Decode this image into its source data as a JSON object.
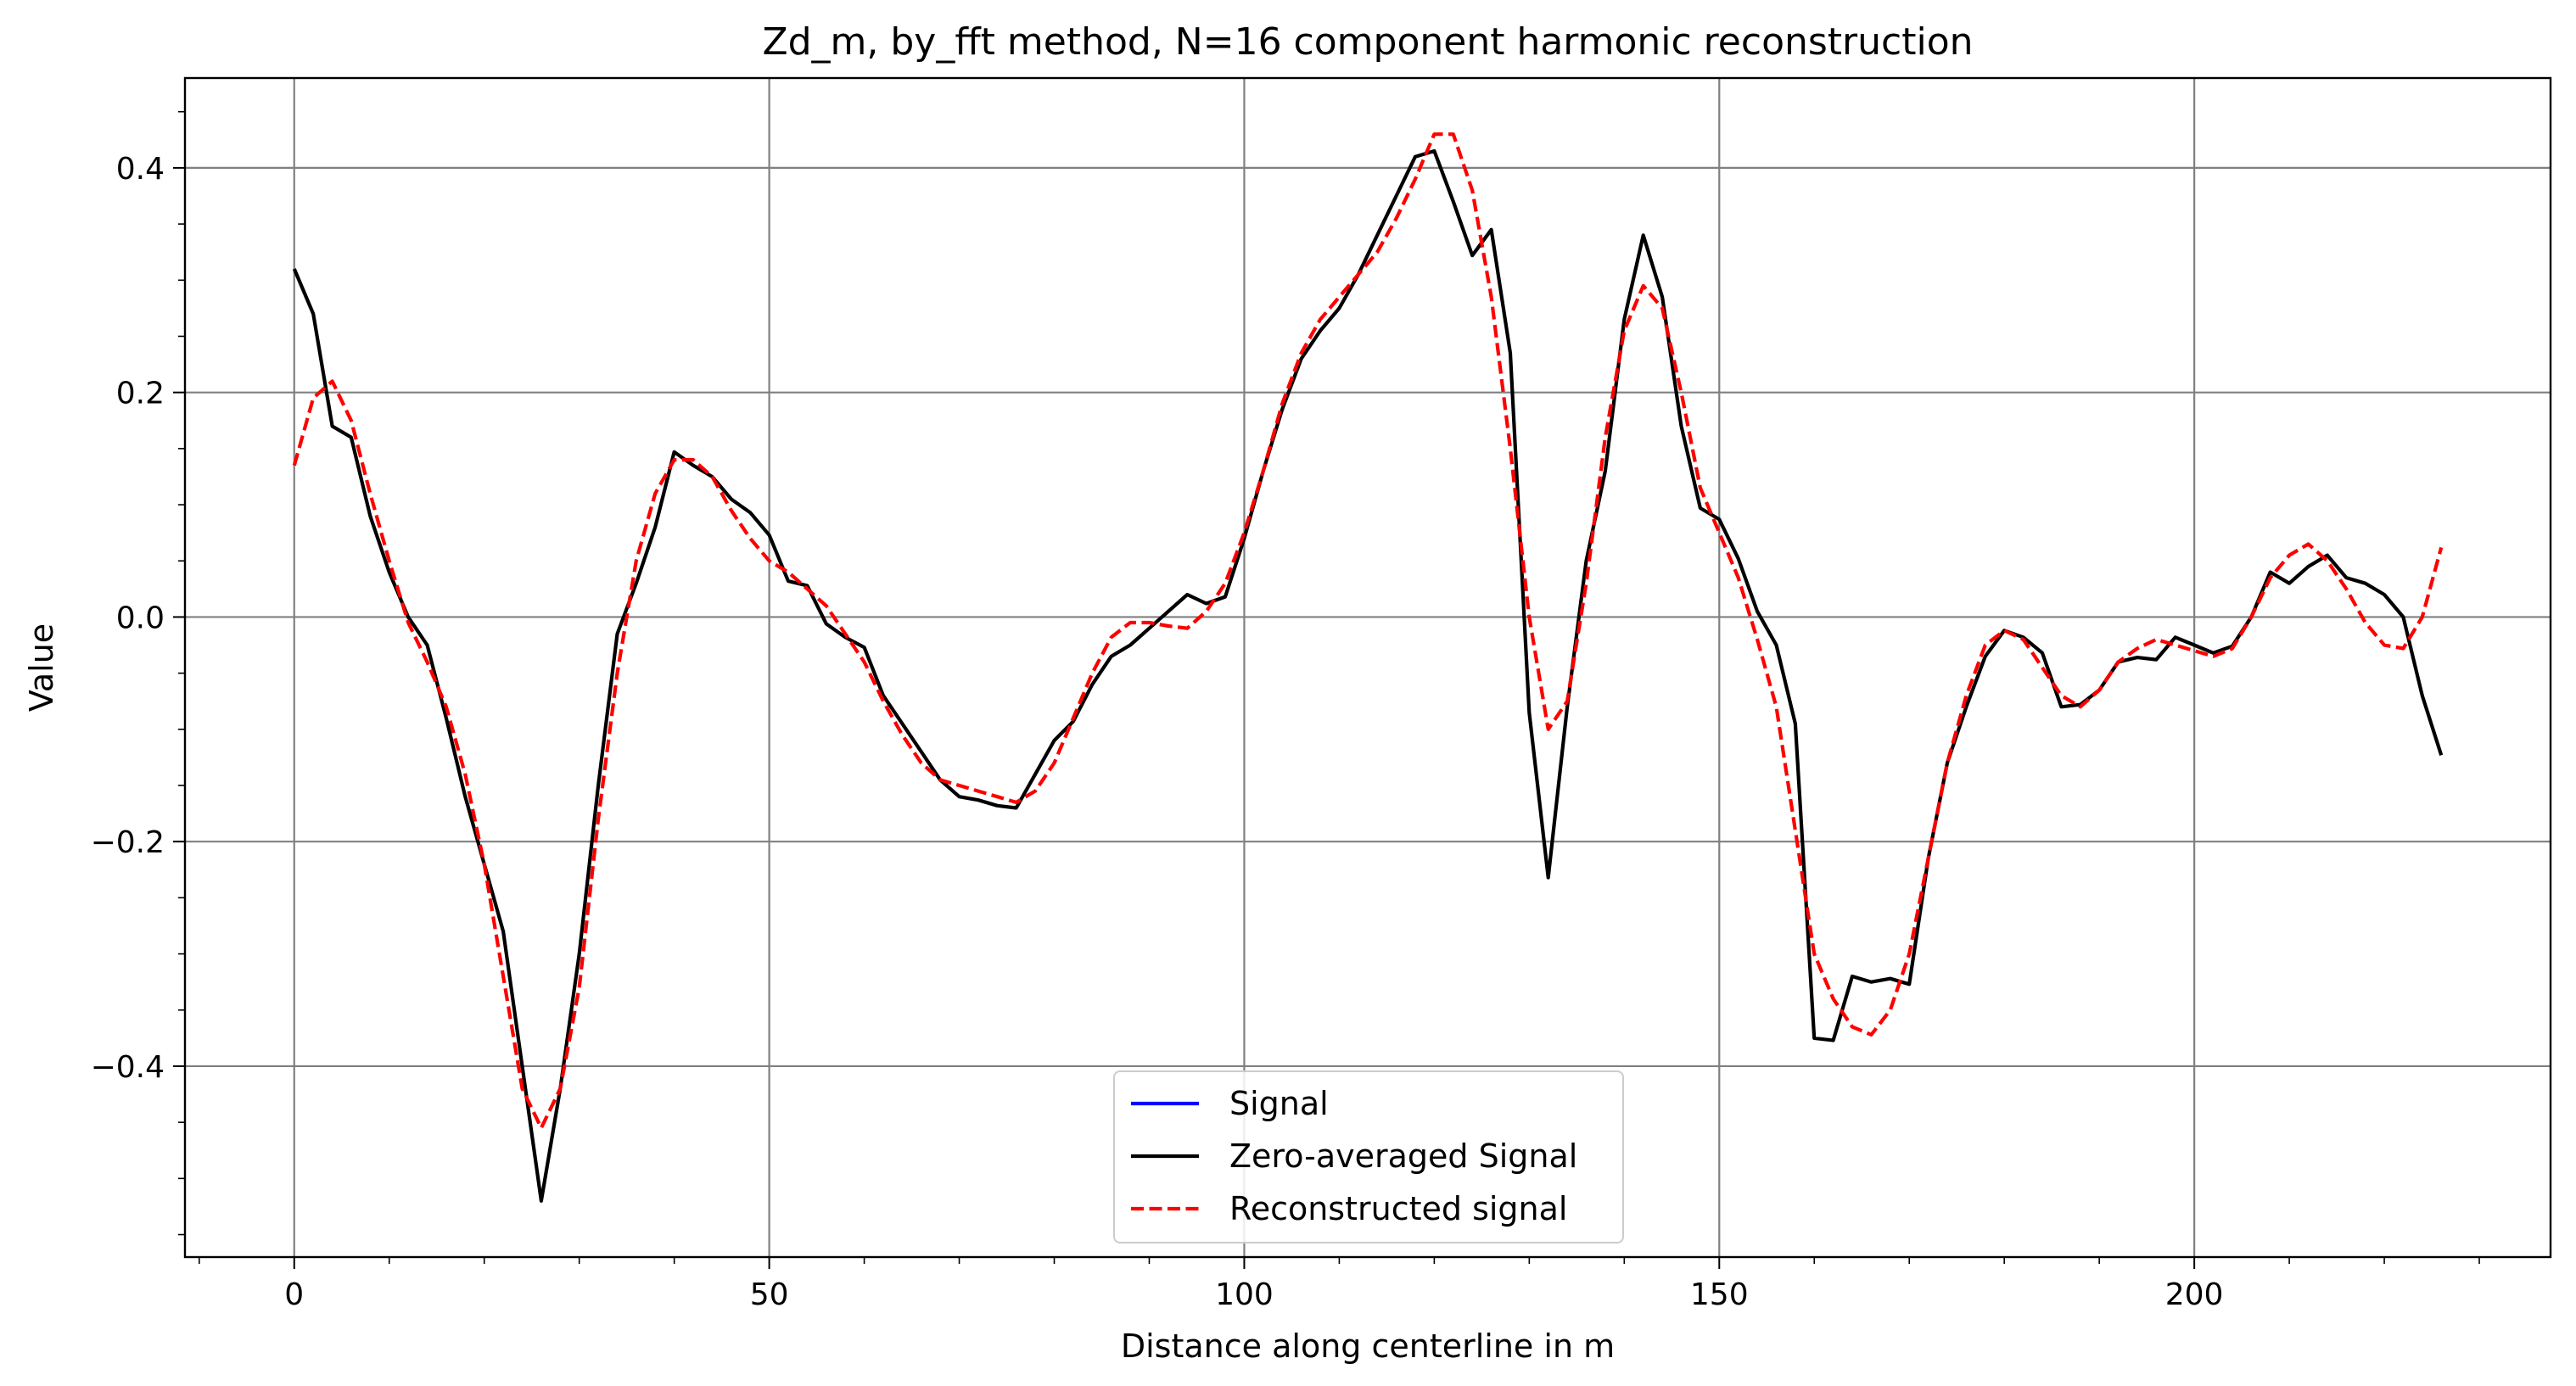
{
  "chart_data": {
    "type": "line",
    "title": "Zd_m, by_fft method, N=16 component harmonic reconstruction",
    "xlabel": "Distance along centerline in m",
    "ylabel": "Value",
    "xlim": [
      -11.5,
      237.5
    ],
    "ylim": [
      -0.57,
      0.48
    ],
    "x_ticks": [
      0,
      50,
      100,
      150,
      200
    ],
    "x_tick_labels": [
      "0",
      "50",
      "100",
      "150",
      "200"
    ],
    "y_ticks": [
      -0.4,
      -0.2,
      0.0,
      0.2,
      0.4
    ],
    "y_tick_labels": [
      "−0.4",
      "−0.2",
      "0.0",
      "0.2",
      "0.4"
    ],
    "grid": true,
    "legend_position": "bottom-center",
    "colors": {
      "signal": "#0000ff",
      "zero_averaged": "#000000",
      "reconstructed": "#ff0000",
      "grid": "#808080"
    },
    "series": [
      {
        "name": "Signal",
        "style": "solid",
        "color": "#0000ff",
        "x": [],
        "y": []
      },
      {
        "name": "Zero-averaged Signal",
        "style": "solid",
        "color": "#000000",
        "x": [
          0,
          2,
          4,
          6,
          8,
          10,
          12,
          14,
          16,
          18,
          20,
          22,
          24,
          26,
          28,
          30,
          32,
          34,
          36,
          38,
          40,
          42,
          44,
          46,
          48,
          50,
          52,
          54,
          56,
          58,
          60,
          62,
          64,
          66,
          68,
          70,
          72,
          74,
          76,
          78,
          80,
          82,
          84,
          86,
          88,
          90,
          92,
          94,
          96,
          98,
          100,
          102,
          104,
          106,
          108,
          110,
          112,
          114,
          116,
          118,
          120,
          122,
          124,
          126,
          128,
          130,
          132,
          134,
          136,
          138,
          140,
          142,
          144,
          146,
          148,
          150,
          152,
          154,
          156,
          158,
          160,
          162,
          164,
          166,
          168,
          170,
          172,
          174,
          176,
          178,
          180,
          182,
          184,
          186,
          188,
          190,
          192,
          194,
          196,
          198,
          200,
          202,
          204,
          206,
          208,
          210,
          212,
          214,
          216,
          218,
          220,
          222,
          224,
          226
        ],
        "y": [
          0.31,
          0.27,
          0.17,
          0.16,
          0.09,
          0.04,
          0.0,
          -0.025,
          -0.09,
          -0.16,
          -0.22,
          -0.28,
          -0.4,
          -0.52,
          -0.42,
          -0.3,
          -0.15,
          -0.015,
          0.03,
          0.08,
          0.147,
          0.135,
          0.125,
          0.105,
          0.093,
          0.073,
          0.032,
          0.028,
          -0.006,
          -0.018,
          -0.027,
          -0.07,
          -0.095,
          -0.12,
          -0.145,
          -0.16,
          -0.163,
          -0.168,
          -0.17,
          -0.14,
          -0.11,
          -0.093,
          -0.06,
          -0.035,
          -0.025,
          -0.01,
          0.005,
          0.02,
          0.012,
          0.018,
          0.07,
          0.13,
          0.185,
          0.23,
          0.255,
          0.275,
          0.305,
          0.34,
          0.375,
          0.41,
          0.415,
          0.37,
          0.322,
          0.345,
          0.235,
          -0.085,
          -0.232,
          -0.08,
          0.05,
          0.13,
          0.265,
          0.34,
          0.285,
          0.17,
          0.097,
          0.087,
          0.052,
          0.005,
          -0.025,
          -0.095,
          -0.375,
          -0.377,
          -0.32,
          -0.325,
          -0.322,
          -0.327,
          -0.215,
          -0.13,
          -0.08,
          -0.035,
          -0.012,
          -0.018,
          -0.032,
          -0.08,
          -0.078,
          -0.065,
          -0.04,
          -0.036,
          -0.038,
          -0.018,
          -0.025,
          -0.032,
          -0.026,
          0.0,
          0.04,
          0.03,
          0.045,
          0.055,
          0.035,
          0.03,
          0.02,
          0.0,
          -0.07,
          -0.123
        ]
      },
      {
        "name": "Reconstructed signal",
        "style": "dashed",
        "color": "#ff0000",
        "x": [
          0,
          2,
          4,
          6,
          8,
          10,
          12,
          14,
          16,
          18,
          20,
          22,
          24,
          26,
          28,
          30,
          32,
          34,
          36,
          38,
          40,
          42,
          44,
          46,
          48,
          50,
          52,
          54,
          56,
          58,
          60,
          62,
          64,
          66,
          68,
          70,
          72,
          74,
          76,
          78,
          80,
          82,
          84,
          86,
          88,
          90,
          92,
          94,
          96,
          98,
          100,
          102,
          104,
          106,
          108,
          110,
          112,
          114,
          116,
          118,
          120,
          122,
          124,
          126,
          128,
          130,
          132,
          134,
          136,
          138,
          140,
          142,
          144,
          146,
          148,
          150,
          152,
          154,
          156,
          158,
          160,
          162,
          164,
          166,
          168,
          170,
          172,
          174,
          176,
          178,
          180,
          182,
          184,
          186,
          188,
          190,
          192,
          194,
          196,
          198,
          200,
          202,
          204,
          206,
          208,
          210,
          212,
          214,
          216,
          218,
          220,
          222,
          224,
          226
        ],
        "y": [
          0.135,
          0.195,
          0.21,
          0.175,
          0.11,
          0.05,
          -0.005,
          -0.04,
          -0.08,
          -0.14,
          -0.22,
          -0.32,
          -0.42,
          -0.455,
          -0.42,
          -0.33,
          -0.18,
          -0.05,
          0.05,
          0.11,
          0.14,
          0.14,
          0.125,
          0.095,
          0.07,
          0.05,
          0.04,
          0.025,
          0.01,
          -0.015,
          -0.04,
          -0.075,
          -0.105,
          -0.13,
          -0.145,
          -0.15,
          -0.155,
          -0.16,
          -0.165,
          -0.155,
          -0.13,
          -0.09,
          -0.05,
          -0.018,
          -0.005,
          -0.005,
          -0.008,
          -0.01,
          0.005,
          0.03,
          0.075,
          0.13,
          0.19,
          0.235,
          0.265,
          0.285,
          0.305,
          0.325,
          0.355,
          0.39,
          0.43,
          0.43,
          0.38,
          0.285,
          0.15,
          0.0,
          -0.1,
          -0.075,
          0.03,
          0.16,
          0.255,
          0.295,
          0.275,
          0.2,
          0.115,
          0.075,
          0.035,
          -0.02,
          -0.08,
          -0.19,
          -0.3,
          -0.34,
          -0.365,
          -0.372,
          -0.35,
          -0.3,
          -0.215,
          -0.13,
          -0.07,
          -0.025,
          -0.012,
          -0.02,
          -0.045,
          -0.07,
          -0.08,
          -0.065,
          -0.04,
          -0.028,
          -0.02,
          -0.025,
          -0.03,
          -0.035,
          -0.028,
          0.0,
          0.035,
          0.055,
          0.065,
          0.05,
          0.025,
          -0.005,
          -0.025,
          -0.028,
          0.0,
          0.062
        ]
      }
    ]
  }
}
